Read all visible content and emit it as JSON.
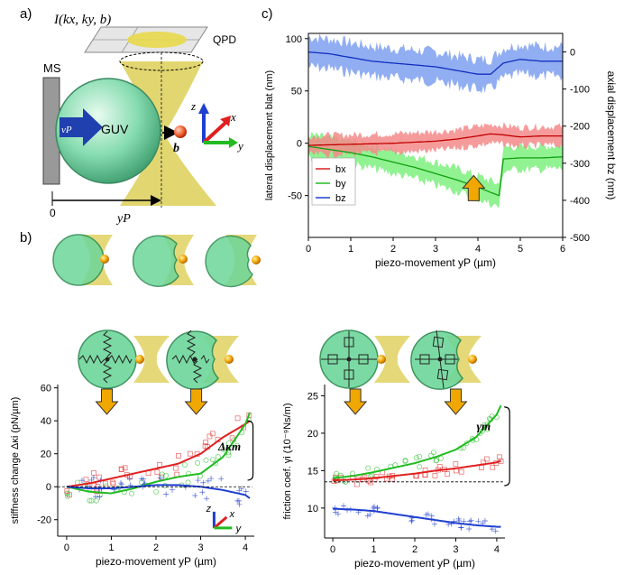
{
  "panel_labels": {
    "a": "a)",
    "b": "b)",
    "c": "c)"
  },
  "schematic": {
    "ms_label": "MS",
    "guv_label": "GUV",
    "qpd_label": "QPD",
    "intensity_label": "I(kx, ky, b)",
    "b_label": "b",
    "vp_label": "vP",
    "zero_label": "0",
    "yp_label": "yP",
    "axes": [
      "z",
      "x",
      "y"
    ]
  },
  "colors": {
    "red": "#e02020",
    "green": "#22bb22",
    "blue": "#1f3fd0",
    "red_fill": "#f58a8a",
    "green_fill": "#7ef07e",
    "blue_fill": "#7fa0f0",
    "yellow": "#e8c93a",
    "guv": "#6dd69a"
  },
  "chart_data": [
    {
      "id": "c",
      "type": "line",
      "xlabel": "piezo-movement yP (µm)",
      "ylabel": "lateral displacement blat (nm)",
      "y2label": "axial displacement bz (nm)",
      "xlim": [
        0,
        6
      ],
      "ylim": [
        -90,
        105
      ],
      "y2lim": [
        -500,
        50
      ],
      "x_ticks": [
        0,
        1,
        2,
        3,
        4,
        5,
        6
      ],
      "y_ticks": [
        100,
        50,
        0,
        -50
      ],
      "y2_ticks": [
        0,
        -100,
        -200,
        -300,
        -400,
        -500
      ],
      "legend": [
        "bx",
        "by",
        "bz"
      ],
      "series": [
        {
          "name": "bx",
          "axis": "left",
          "color": "red",
          "x": [
            0,
            1,
            2,
            3,
            3.5,
            4,
            4.3,
            4.6,
            5,
            5.5,
            6
          ],
          "y": [
            -2,
            -1,
            0,
            2,
            4,
            7,
            9,
            8,
            6,
            7,
            7
          ]
        },
        {
          "name": "by",
          "axis": "left",
          "color": "green",
          "x": [
            0,
            0.5,
            1,
            1.5,
            2,
            2.5,
            3,
            3.5,
            4,
            4.3,
            4.5,
            4.6,
            5,
            5.5,
            6
          ],
          "y": [
            -3,
            -6,
            -9,
            -13,
            -18,
            -23,
            -29,
            -35,
            -42,
            -47,
            -50,
            -15,
            -14,
            -14,
            -13
          ]
        },
        {
          "name": "bz",
          "axis": "right",
          "color": "blue",
          "x": [
            0,
            0.5,
            1,
            1.5,
            2,
            2.5,
            3,
            3.5,
            4,
            4.3,
            4.6,
            5,
            5.5,
            6
          ],
          "y": [
            0,
            -5,
            -15,
            -25,
            -30,
            -35,
            -40,
            -50,
            -60,
            -60,
            -30,
            -20,
            -25,
            -25
          ]
        }
      ]
    },
    {
      "id": "stiffness",
      "type": "line",
      "xlabel": "piezo-movement yP (µm)",
      "ylabel": "stiffness change Δκi (pN/µm)",
      "annotation": "Δκm",
      "xlim": [
        -0.2,
        4.2
      ],
      "ylim": [
        -30,
        62
      ],
      "x_ticks": [
        0,
        1,
        2,
        3,
        4
      ],
      "y_ticks": [
        60,
        40,
        20,
        0,
        -20
      ],
      "series": [
        {
          "name": "x",
          "color": "red",
          "x": [
            0,
            0.5,
            1,
            1.5,
            2,
            2.5,
            3,
            3.5,
            4,
            4.1
          ],
          "y": [
            0,
            2,
            5,
            8,
            11,
            14,
            20,
            30,
            38,
            40
          ]
        },
        {
          "name": "y",
          "color": "green",
          "x": [
            0,
            0.5,
            1,
            1.5,
            2,
            2.5,
            3,
            3.5,
            4,
            4.1
          ],
          "y": [
            0,
            -3,
            -4,
            -1,
            3,
            6,
            8,
            18,
            38,
            45
          ]
        },
        {
          "name": "z",
          "color": "blue",
          "x": [
            0,
            0.5,
            1,
            1.5,
            2,
            2.5,
            3,
            3.5,
            4,
            4.1
          ],
          "y": [
            0,
            -1,
            -1,
            0,
            1,
            1,
            0,
            -2,
            -5,
            -7
          ]
        }
      ]
    },
    {
      "id": "friction",
      "type": "line",
      "xlabel": "piezo-movement yP (µm)",
      "ylabel": "friction coef. γi (10⁻⁹Ns/m)",
      "annotation": "γm",
      "xlim": [
        -0.2,
        4.2
      ],
      "ylim": [
        6,
        26.5
      ],
      "x_ticks": [
        0,
        1,
        2,
        3,
        4
      ],
      "y_ticks": [
        25,
        20,
        15,
        10
      ],
      "series": [
        {
          "name": "x",
          "color": "red",
          "x": [
            0,
            0.5,
            1,
            1.5,
            2,
            2.5,
            3,
            3.5,
            4,
            4.1
          ],
          "y": [
            13.7,
            13.8,
            14,
            14.3,
            14.6,
            15,
            15.3,
            15.7,
            16.1,
            16.3
          ]
        },
        {
          "name": "y",
          "color": "green",
          "x": [
            0,
            0.5,
            1,
            1.5,
            2,
            2.5,
            3,
            3.5,
            4,
            4.1
          ],
          "y": [
            14,
            14.3,
            14.8,
            15.4,
            16,
            16.8,
            17.8,
            19.5,
            22.5,
            23.7
          ]
        },
        {
          "name": "z",
          "color": "blue",
          "x": [
            0,
            0.5,
            1,
            1.5,
            2,
            2.5,
            3,
            3.5,
            4,
            4.1
          ],
          "y": [
            9.9,
            9.8,
            9.6,
            9.2,
            8.8,
            8.4,
            8,
            7.7,
            7.5,
            7.5
          ]
        }
      ]
    }
  ]
}
